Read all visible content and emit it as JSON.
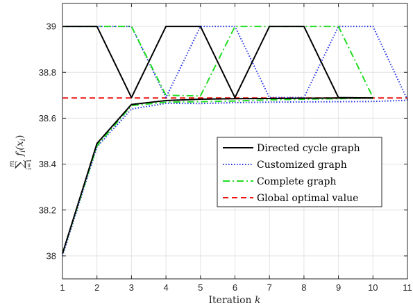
{
  "chart_data": {
    "type": "line",
    "title": "",
    "xlabel": "Iteration",
    "xlabel_var": "k",
    "ylabel_parts": {
      "sum": "∑",
      "upper": "m",
      "lower": "i=1",
      "expr": "f",
      "sub": "i",
      "arg": "(x",
      "argsub": "i",
      "close": ")"
    },
    "xlim": [
      1,
      11
    ],
    "ylim": [
      37.9,
      39.1
    ],
    "xticks": [
      1,
      2,
      3,
      4,
      5,
      6,
      7,
      8,
      9,
      10,
      11
    ],
    "xtick_labels": [
      "1",
      "2",
      "3",
      "4",
      "5",
      "6",
      "7",
      "8",
      "9",
      "10",
      "11"
    ],
    "yticks": [
      38,
      38.2,
      38.4,
      38.6,
      38.8,
      39
    ],
    "ytick_labels": [
      "38",
      "38.2",
      "38.4",
      "38.6",
      "38.8",
      "39"
    ],
    "grid": true,
    "legend_position": "center-right",
    "series": [
      {
        "name": "Directed cycle graph",
        "style": "solid",
        "color": "#000000",
        "width": 2,
        "upper": {
          "x": [
            1,
            2,
            3,
            4,
            5,
            6,
            7,
            8,
            9,
            10
          ],
          "y": [
            39,
            39,
            38.69,
            39,
            39,
            38.69,
            39,
            39,
            38.69,
            38.688
          ]
        },
        "lower": {
          "x": [
            1,
            2,
            3,
            4,
            5,
            6,
            7,
            8,
            9,
            10
          ],
          "y": [
            38.01,
            38.49,
            38.66,
            38.677,
            38.683,
            38.685,
            38.686,
            38.687,
            38.688,
            38.688
          ]
        }
      },
      {
        "name": "Customized graph",
        "style": "dotted",
        "color": "#1f2ee0",
        "width": 2,
        "upper": {
          "x": [
            1,
            2,
            3,
            4,
            5,
            6,
            7,
            8,
            9,
            10,
            11
          ],
          "y": [
            39,
            39,
            39,
            38.69,
            39,
            39,
            38.69,
            38.69,
            39,
            39,
            38.68
          ]
        },
        "lower": {
          "x": [
            1,
            2,
            3,
            4,
            5,
            6,
            7,
            8,
            9,
            10,
            11
          ],
          "y": [
            38.0,
            38.475,
            38.64,
            38.665,
            38.664,
            38.668,
            38.67,
            38.671,
            38.672,
            38.673,
            38.678
          ]
        }
      },
      {
        "name": "Complete graph",
        "style": "dashdot",
        "color": "#22dd22",
        "width": 2,
        "upper": {
          "x": [
            1,
            2,
            3,
            4,
            5,
            6,
            7,
            8,
            9,
            10
          ],
          "y": [
            39,
            39,
            39,
            38.7,
            38.697,
            39,
            39,
            39,
            39,
            38.69
          ]
        },
        "lower": {
          "x": [
            1,
            2,
            3,
            4,
            5,
            6,
            7,
            8,
            9,
            10
          ],
          "y": [
            38.01,
            38.48,
            38.655,
            38.67,
            38.672,
            38.675,
            38.68,
            38.683,
            38.685,
            38.688
          ]
        }
      },
      {
        "name": "Global optimal value",
        "style": "dashed",
        "color": "#ee1111",
        "width": 2,
        "x": [
          1,
          11
        ],
        "y": [
          38.688,
          38.688
        ]
      }
    ]
  }
}
